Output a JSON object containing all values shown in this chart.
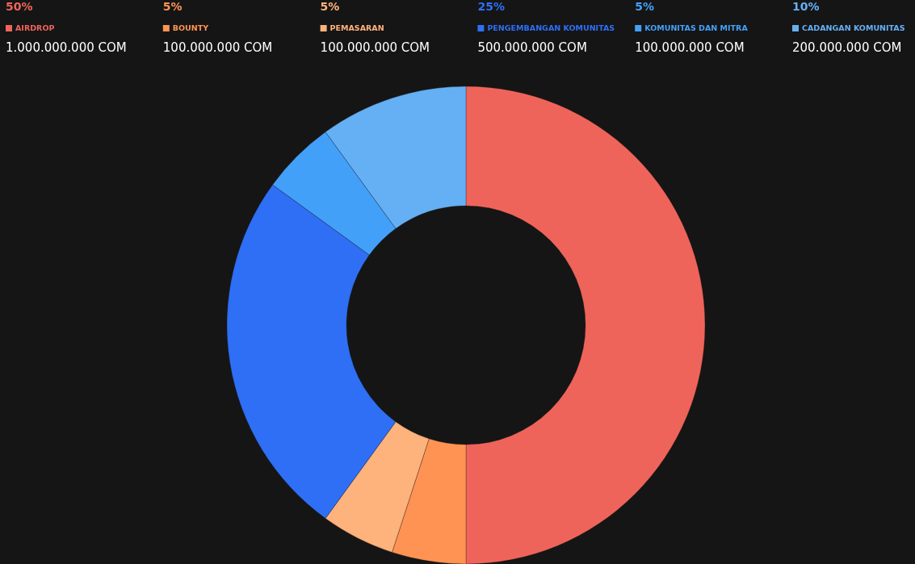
{
  "chart_data": {
    "type": "donut",
    "categories": [
      "AIRDROP",
      "BOUNTY",
      "PEMASARAN",
      "PENGEMBANGAN KOMUNITAS",
      "KOMUNITAS DAN MITRA",
      "CADANGAN KOMUNITAS"
    ],
    "values": [
      50,
      5,
      5,
      25,
      5,
      10
    ],
    "colors": [
      "#ef645a",
      "#fe9353",
      "#feb27c",
      "#2e6ff5",
      "#43a0f9",
      "#65b0f5"
    ],
    "value_labels": [
      "50%",
      "5%",
      "5%",
      "25%",
      "5%",
      "10%"
    ],
    "annotations": [
      "1.000.000.000 COM",
      "100.000.000 COM",
      "100.000.000 COM",
      "500.000.000 COM",
      "100.000.000 COM",
      "200.000.000 COM"
    ],
    "legend": "top"
  }
}
